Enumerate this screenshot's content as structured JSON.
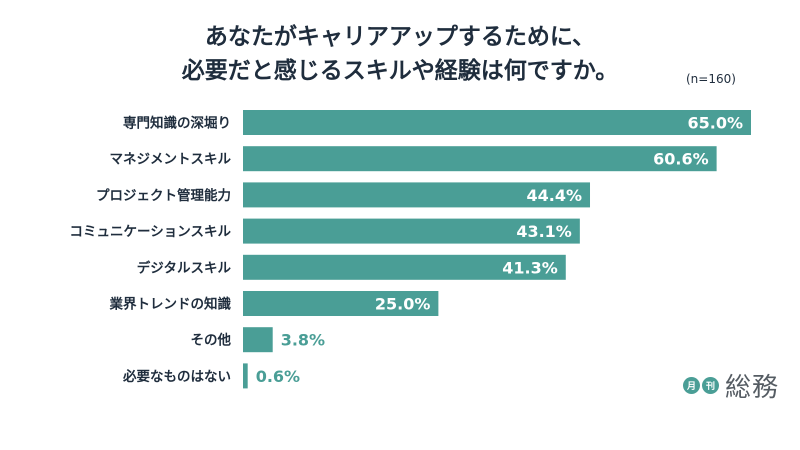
{
  "chart_data": {
    "type": "bar",
    "orientation": "horizontal",
    "title_lines": [
      "あなたがキャリアアップするために、",
      "必要だと感じるスキルや経験は何ですか。"
    ],
    "note": "(n=160)",
    "categories": [
      "専門知識の深堀り",
      "マネジメントスキル",
      "プロジェクト管理能力",
      "コミュニケーションスキル",
      "デジタルスキル",
      "業界トレンドの知識",
      "その他",
      "必要なものはない"
    ],
    "values": [
      65.0,
      60.6,
      44.4,
      43.1,
      41.3,
      25.0,
      3.8,
      0.6
    ],
    "value_labels": [
      "65.0%",
      "60.6%",
      "44.4%",
      "43.1%",
      "41.3%",
      "25.0%",
      "3.8%",
      "0.6%"
    ],
    "value_unit": "%",
    "xlim": [
      0,
      65
    ],
    "grid": false,
    "bar_color": "#4a9e96",
    "label_inside_color": "#ffffff",
    "label_outside_color": "#4a9e96"
  },
  "logo": {
    "badge_1": "月",
    "badge_2": "刊",
    "name": "総務"
  }
}
